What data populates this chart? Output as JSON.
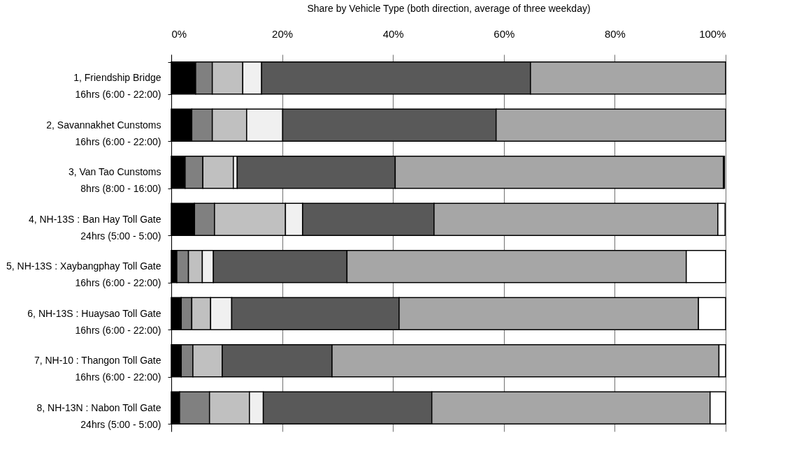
{
  "chart_data": {
    "type": "bar",
    "orientation": "horizontal",
    "stacked": true,
    "xlabel": "Share by Vehicle Type (both direction, average of three weekday)",
    "categories": [
      "1, Friendship Bridge\n16hrs (6:00 - 22:00)",
      "2, Savannakhet Cunstoms\n16hrs (6:00 - 22:00)",
      "3, Van Tao Cunstoms\n8hrs (8:00 - 16:00)",
      "4, NH-13S : Ban Hay Toll Gate\n24hrs (5:00 - 5:00)",
      "5, NH-13S : Xaybangphay Toll Gate\n16hrs (6:00 - 22:00)",
      "6, NH-13S : Huaysao Toll Gate\n16hrs (6:00 - 22:00)",
      "7, NH-10 : Thangon Toll Gate\n16hrs (6:00 - 22:00)",
      "8, NH-13N : Nabon Toll Gate\n24hrs (5:00 - 5:00)"
    ],
    "series": [
      {
        "color": "#000000",
        "values": [
          4.4,
          3.7,
          2.5,
          4.2,
          1.0,
          1.8,
          1.8,
          1.5
        ]
      },
      {
        "color": "#808080",
        "values": [
          3.0,
          3.7,
          3.2,
          3.6,
          2.1,
          1.9,
          2.1,
          5.4
        ]
      },
      {
        "color": "#c0c0c0",
        "values": [
          5.5,
          6.2,
          5.5,
          12.8,
          2.5,
          3.4,
          5.3,
          7.2
        ]
      },
      {
        "color": "#f0f0f0",
        "values": [
          3.4,
          6.5,
          0.7,
          3.1,
          2.0,
          3.8,
          null,
          2.5
        ]
      },
      {
        "color": "#595959",
        "values": [
          48.5,
          38.5,
          28.5,
          23.7,
          24.1,
          30.2,
          19.8,
          30.4
        ]
      },
      {
        "color": "#a6a6a6",
        "values": [
          35.2,
          41.4,
          59.2,
          51.2,
          61.2,
          54.0,
          69.8,
          50.2
        ]
      },
      {
        "color": "#ffffff",
        "values": [
          null,
          null,
          null,
          1.3,
          7.1,
          4.9,
          1.2,
          2.8
        ]
      },
      {
        "color": "#000000",
        "values": [
          null,
          null,
          0.2,
          null,
          null,
          null,
          null,
          null
        ]
      }
    ],
    "xlim": [
      0,
      100
    ],
    "xticks": [
      {
        "value": 0,
        "label": "0%"
      },
      {
        "value": 20,
        "label": "20%"
      },
      {
        "value": 40,
        "label": "40%"
      },
      {
        "value": 60,
        "label": "60%"
      },
      {
        "value": 80,
        "label": "80%"
      },
      {
        "value": 100,
        "label": "100%"
      }
    ],
    "grid": "x",
    "legend": false
  }
}
